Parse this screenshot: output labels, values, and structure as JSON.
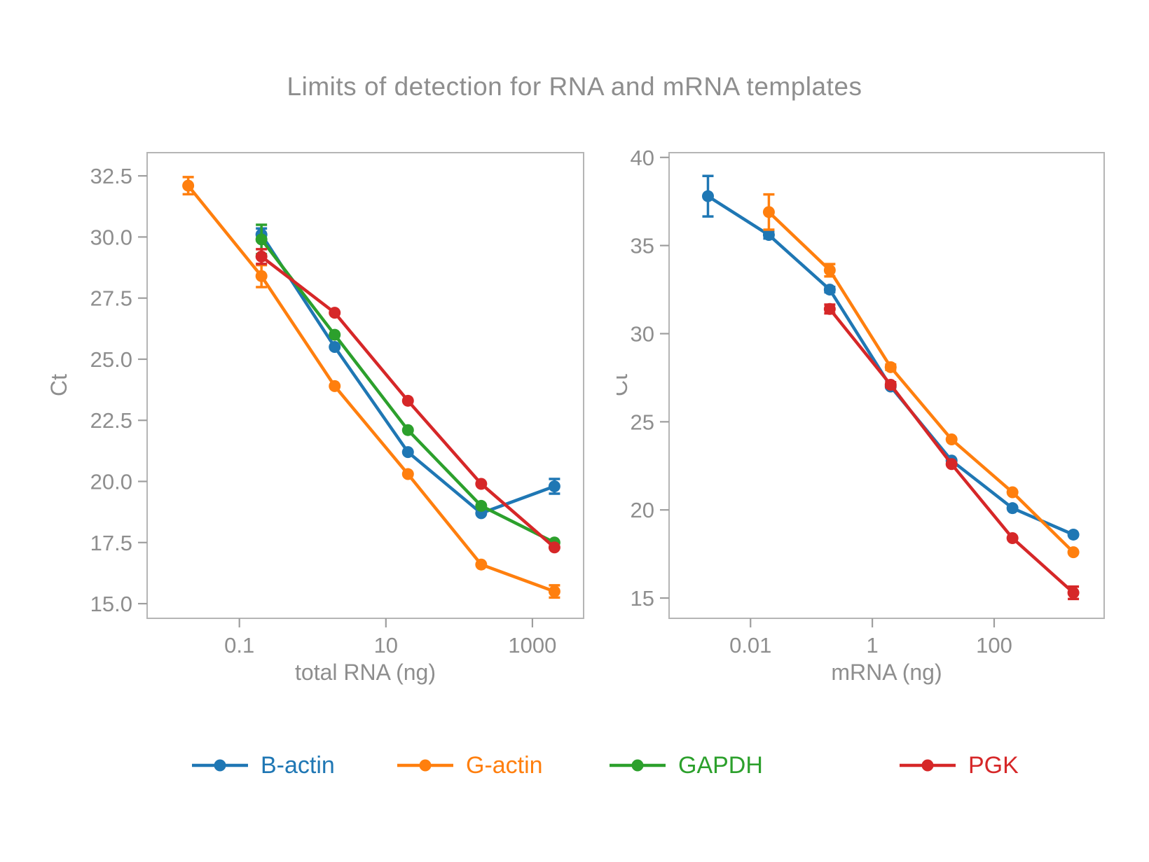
{
  "title": "Limits of detection for RNA and mRNA templates",
  "colors": {
    "text": "#8e8e8e",
    "spine": "#b5b5b5",
    "tick": "#9e9e9e",
    "background": "#ffffff",
    "blue": "#1f77b4",
    "orange": "#ff7f0e",
    "green": "#2ca02c",
    "red": "#d62728"
  },
  "legend": {
    "position": "bottom",
    "items": [
      {
        "label": "B-actin",
        "color": "#1f77b4",
        "marker": "line-circle"
      },
      {
        "label": "G-actin",
        "color": "#ff7f0e",
        "marker": "line-circle"
      },
      {
        "label": "GAPDH",
        "color": "#2ca02c",
        "marker": "line-circle"
      },
      {
        "label": "PGK",
        "color": "#d62728",
        "marker": "line-circle"
      }
    ]
  },
  "chart_data": [
    {
      "type": "line",
      "title": "",
      "xlabel": "total RNA (ng)",
      "ylabel": "Ct",
      "xscale": "log",
      "grid": false,
      "xlim": [
        0.0055,
        5000
      ],
      "ylim": [
        14.4,
        33.45
      ],
      "xticks": [
        {
          "value": 0.1,
          "label": "0.1"
        },
        {
          "value": 10,
          "label": "10"
        },
        {
          "value": 1000,
          "label": "1000"
        }
      ],
      "yticks": [
        {
          "value": 15.0,
          "label": "15.0"
        },
        {
          "value": 17.5,
          "label": "17.5"
        },
        {
          "value": 20.0,
          "label": "20.0"
        },
        {
          "value": 22.5,
          "label": "22.5"
        },
        {
          "value": 25.0,
          "label": "25.0"
        },
        {
          "value": 27.5,
          "label": "27.5"
        },
        {
          "value": 30.0,
          "label": "30.0"
        },
        {
          "value": 32.5,
          "label": "32.5"
        }
      ],
      "series": [
        {
          "name": "B-actin",
          "color": "#1f77b4",
          "x": [
            0.2,
            2,
            20,
            200,
            2000
          ],
          "y": [
            30.1,
            25.5,
            21.2,
            18.7,
            19.8
          ],
          "yerr": [
            0.25,
            0,
            0,
            0,
            0.3
          ]
        },
        {
          "name": "G-actin",
          "color": "#ff7f0e",
          "x": [
            0.02,
            0.2,
            2,
            20,
            200,
            2000
          ],
          "y": [
            32.1,
            28.4,
            23.9,
            20.3,
            16.6,
            15.5
          ],
          "yerr": [
            0.35,
            0.45,
            0,
            0,
            0,
            0.25
          ]
        },
        {
          "name": "GAPDH",
          "color": "#2ca02c",
          "x": [
            0.2,
            2,
            20,
            200,
            2000
          ],
          "y": [
            29.9,
            26.0,
            22.1,
            19.0,
            17.5
          ],
          "yerr": [
            0.6,
            0,
            0,
            0,
            0
          ]
        },
        {
          "name": "PGK",
          "color": "#d62728",
          "x": [
            0.2,
            2,
            20,
            200,
            2000
          ],
          "y": [
            29.2,
            26.9,
            23.3,
            19.9,
            17.3
          ],
          "yerr": [
            0.3,
            0,
            0,
            0,
            0
          ]
        }
      ]
    },
    {
      "type": "line",
      "title": "",
      "xlabel": "mRNA (ng)",
      "ylabel": "Ct",
      "xscale": "log",
      "grid": false,
      "xlim": [
        0.00046,
        6400
      ],
      "ylim": [
        13.85,
        40.27
      ],
      "xticks": [
        {
          "value": 0.01,
          "label": "0.01"
        },
        {
          "value": 1,
          "label": "1"
        },
        {
          "value": 100,
          "label": "100"
        }
      ],
      "yticks": [
        {
          "value": 15,
          "label": "15"
        },
        {
          "value": 20,
          "label": "20"
        },
        {
          "value": 25,
          "label": "25"
        },
        {
          "value": 30,
          "label": "30"
        },
        {
          "value": 35,
          "label": "35"
        },
        {
          "value": 40,
          "label": "40"
        }
      ],
      "series": [
        {
          "name": "B-actin",
          "color": "#1f77b4",
          "x": [
            0.002,
            0.02,
            0.2,
            2,
            20,
            200,
            2000
          ],
          "y": [
            37.8,
            35.6,
            32.5,
            27.0,
            22.8,
            20.1,
            18.6
          ],
          "yerr": [
            1.15,
            0.2,
            0.15,
            0,
            0,
            0,
            0
          ]
        },
        {
          "name": "G-actin",
          "color": "#ff7f0e",
          "x": [
            0.02,
            0.2,
            2,
            20,
            200,
            2000
          ],
          "y": [
            36.9,
            33.6,
            28.1,
            24.0,
            21.0,
            17.6
          ],
          "yerr": [
            1.0,
            0.35,
            0.15,
            0,
            0,
            0
          ]
        },
        {
          "name": "PGK",
          "color": "#d62728",
          "x": [
            0.2,
            2,
            20,
            200,
            2000
          ],
          "y": [
            31.4,
            27.1,
            22.6,
            18.4,
            15.3
          ],
          "yerr": [
            0.25,
            0.15,
            0,
            0,
            0.35
          ]
        }
      ]
    }
  ]
}
